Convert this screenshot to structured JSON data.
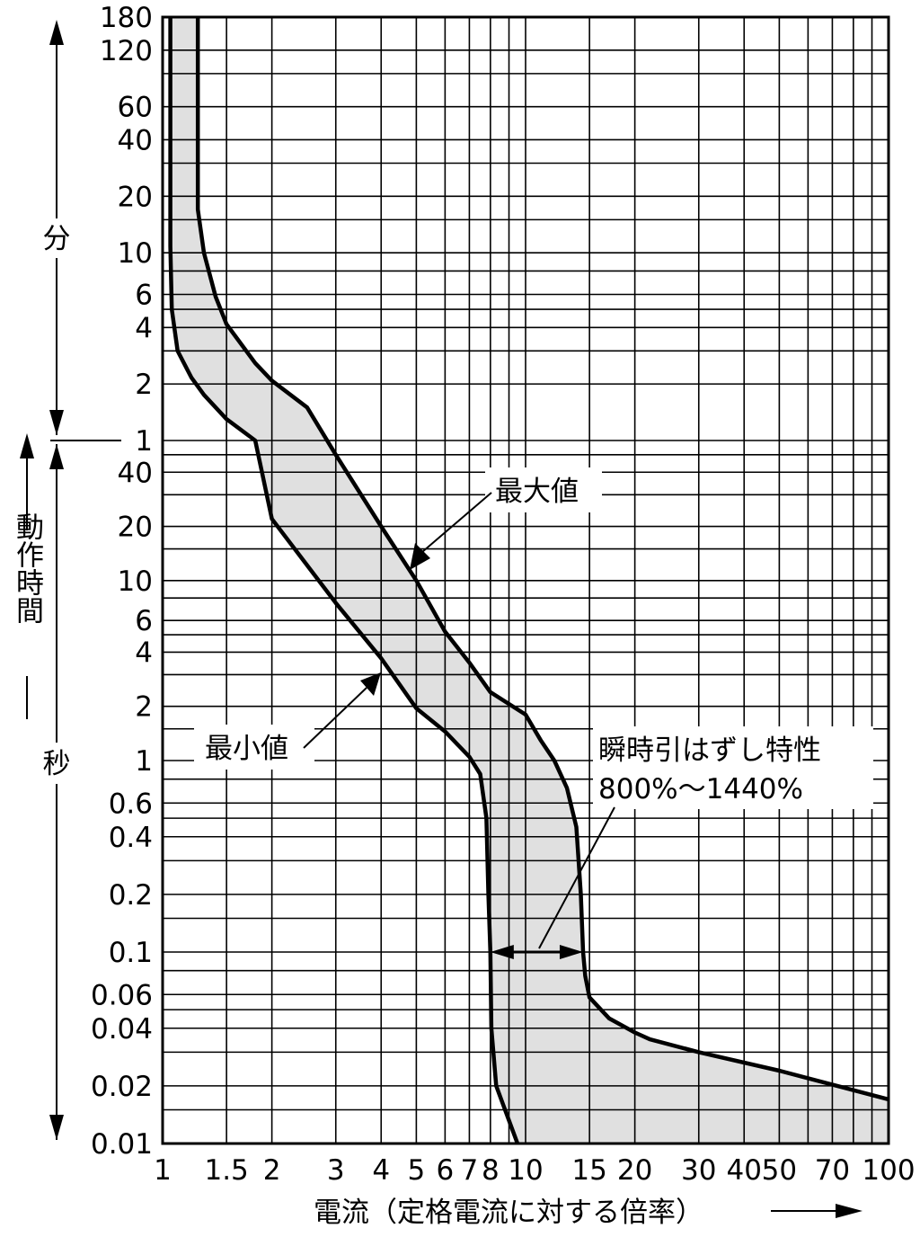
{
  "chart_data": {
    "type": "area",
    "title": "",
    "xlabel": "電流（定格電流に対する倍率）",
    "x_scale": "log",
    "xlim": [
      1,
      100
    ],
    "x_ticks": [
      1,
      1.5,
      2,
      3,
      4,
      5,
      6,
      7,
      8,
      10,
      15,
      20,
      30,
      40,
      50,
      70,
      100
    ],
    "x_tick_labels": [
      "1",
      "1.5",
      "2",
      "3",
      "4",
      "5",
      "6",
      "7",
      "8",
      "10",
      "15",
      "20",
      "30",
      "40",
      "50",
      "70",
      "100"
    ],
    "y_scale": "log",
    "y_unit_label": "動作時間",
    "y_ranges": [
      {
        "label": "分",
        "from": "1",
        "to": "180"
      },
      {
        "label": "秒",
        "from": "0.01",
        "to": "1"
      }
    ],
    "y_tick_labels": [
      {
        "label": "180",
        "unit": "分"
      },
      {
        "label": "120",
        "unit": "分"
      },
      {
        "label": "60",
        "unit": "分"
      },
      {
        "label": "40",
        "unit": "分"
      },
      {
        "label": "20",
        "unit": "分"
      },
      {
        "label": "10",
        "unit": "分"
      },
      {
        "label": "6",
        "unit": "分"
      },
      {
        "label": "4",
        "unit": "分"
      },
      {
        "label": "2",
        "unit": "分"
      },
      {
        "label": "1",
        "unit": "分"
      },
      {
        "label": "40",
        "unit": "秒"
      },
      {
        "label": "20",
        "unit": "秒"
      },
      {
        "label": "10",
        "unit": "秒"
      },
      {
        "label": "6",
        "unit": "秒"
      },
      {
        "label": "4",
        "unit": "秒"
      },
      {
        "label": "2",
        "unit": "秒"
      },
      {
        "label": "1",
        "unit": "秒"
      },
      {
        "label": "0.6",
        "unit": "秒"
      },
      {
        "label": "0.4",
        "unit": "秒"
      },
      {
        "label": "0.2",
        "unit": "秒"
      },
      {
        "label": "0.1",
        "unit": "秒"
      },
      {
        "label": "0.06",
        "unit": "秒"
      },
      {
        "label": "0.04",
        "unit": "秒"
      },
      {
        "label": "0.02",
        "unit": "秒"
      },
      {
        "label": "0.01",
        "unit": "秒"
      }
    ],
    "series": [
      {
        "name": "最大値",
        "points_x_multiple_y_seconds": [
          [
            1.25,
            10800
          ],
          [
            1.25,
            1020
          ],
          [
            1.3,
            600
          ],
          [
            1.4,
            350
          ],
          [
            1.5,
            250
          ],
          [
            1.8,
            155
          ],
          [
            2.0,
            125
          ],
          [
            2.5,
            90
          ],
          [
            3.0,
            50
          ],
          [
            4.0,
            20
          ],
          [
            5.0,
            10
          ],
          [
            6.0,
            5.2
          ],
          [
            7.0,
            3.5
          ],
          [
            8.0,
            2.4
          ],
          [
            10.0,
            1.8
          ],
          [
            11.0,
            1.3
          ],
          [
            12.0,
            1.0
          ],
          [
            13.0,
            0.72
          ],
          [
            13.8,
            0.45
          ],
          [
            14.2,
            0.2
          ],
          [
            14.4,
            0.1
          ],
          [
            14.6,
            0.075
          ],
          [
            15.0,
            0.058
          ],
          [
            17.0,
            0.045
          ],
          [
            20.0,
            0.038
          ],
          [
            22.0,
            0.035
          ],
          [
            30.0,
            0.03
          ],
          [
            50.0,
            0.024
          ],
          [
            100.0,
            0.017
          ]
        ]
      },
      {
        "name": "最小値",
        "points_x_multiple_y_seconds": [
          [
            1.05,
            10800
          ],
          [
            1.05,
            650
          ],
          [
            1.06,
            300
          ],
          [
            1.1,
            180
          ],
          [
            1.2,
            130
          ],
          [
            1.3,
            105
          ],
          [
            1.5,
            78
          ],
          [
            1.8,
            60
          ],
          [
            2.0,
            22
          ],
          [
            3.0,
            7.5
          ],
          [
            4.0,
            3.7
          ],
          [
            5.0,
            1.95
          ],
          [
            6.0,
            1.45
          ],
          [
            7.0,
            1.05
          ],
          [
            7.5,
            0.85
          ],
          [
            7.8,
            0.5
          ],
          [
            7.9,
            0.2
          ],
          [
            8.0,
            0.1
          ],
          [
            8.05,
            0.04
          ],
          [
            8.3,
            0.02
          ],
          [
            9.5,
            0.01
          ]
        ]
      }
    ],
    "annotations": {
      "max_label": "最大値",
      "min_label": "最小値",
      "instant_title": "瞬時引はずし特性",
      "instant_range": "800%〜1440%",
      "instant_from_multiple": 8,
      "instant_to_multiple": 14.4
    },
    "grid": true,
    "shading_color": "#e0e0e0",
    "line_color": "#000000"
  }
}
